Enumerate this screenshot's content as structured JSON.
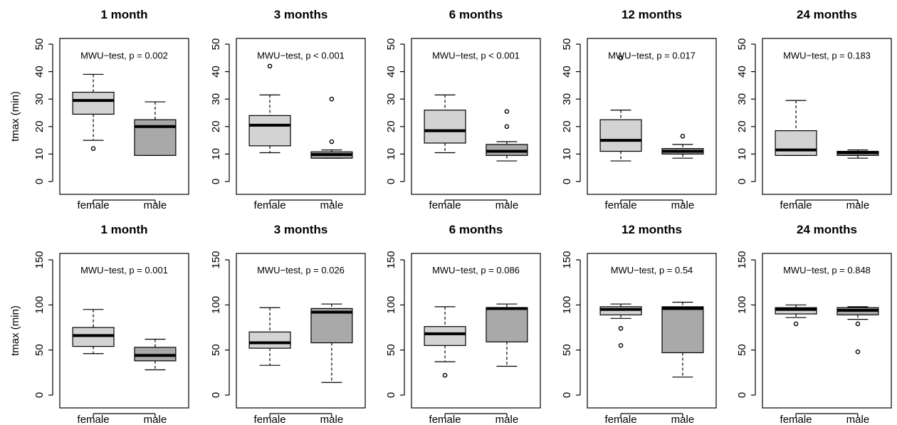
{
  "chart_data": [
    {
      "type": "boxplot",
      "title": "1 month",
      "ylabel": "tmax (min)",
      "annotation": "MWU−test, p = 0.002",
      "ylim": [
        0,
        50
      ],
      "yticks": [
        "0",
        "10",
        "20",
        "30",
        "40",
        "50"
      ],
      "categories": [
        "female",
        "male"
      ],
      "boxes": [
        {
          "name": "female",
          "color": "#d3d3d3",
          "whisker_low": 15,
          "q1": 24.5,
          "median": 29.5,
          "q3": 32.5,
          "whisker_high": 39,
          "outliers": [
            12
          ]
        },
        {
          "name": "male",
          "color": "#a9a9a9",
          "whisker_low": 9.5,
          "q1": 9.5,
          "median": 20,
          "q3": 22.5,
          "whisker_high": 29,
          "outliers": []
        }
      ]
    },
    {
      "type": "boxplot",
      "title": "3 months",
      "ylabel": "",
      "annotation": "MWU−test, p < 0.001",
      "ylim": [
        0,
        50
      ],
      "yticks": [
        "0",
        "10",
        "20",
        "30",
        "40",
        "50"
      ],
      "categories": [
        "female",
        "male"
      ],
      "boxes": [
        {
          "name": "female",
          "color": "#d3d3d3",
          "whisker_low": 10.5,
          "q1": 13,
          "median": 20.5,
          "q3": 24,
          "whisker_high": 31.5,
          "outliers": [
            42
          ]
        },
        {
          "name": "male",
          "color": "#a9a9a9",
          "whisker_low": 8.5,
          "q1": 8.5,
          "median": 9.8,
          "q3": 10.8,
          "whisker_high": 11.5,
          "outliers": [
            14.5,
            30
          ]
        }
      ]
    },
    {
      "type": "boxplot",
      "title": "6 months",
      "ylabel": "",
      "annotation": "MWU−test, p < 0.001",
      "ylim": [
        0,
        50
      ],
      "yticks": [
        "0",
        "10",
        "20",
        "30",
        "40",
        "50"
      ],
      "categories": [
        "female",
        "male"
      ],
      "boxes": [
        {
          "name": "female",
          "color": "#d3d3d3",
          "whisker_low": 10.5,
          "q1": 14,
          "median": 18.5,
          "q3": 26,
          "whisker_high": 31.5,
          "outliers": []
        },
        {
          "name": "male",
          "color": "#a9a9a9",
          "whisker_low": 7.5,
          "q1": 9.5,
          "median": 11,
          "q3": 13.5,
          "whisker_high": 14.5,
          "outliers": [
            20,
            25.5
          ]
        }
      ]
    },
    {
      "type": "boxplot",
      "title": "12 months",
      "ylabel": "",
      "annotation": "MWU−test, p = 0.017",
      "ylim": [
        0,
        50
      ],
      "yticks": [
        "0",
        "10",
        "20",
        "30",
        "40",
        "50"
      ],
      "categories": [
        "female",
        "male"
      ],
      "boxes": [
        {
          "name": "female",
          "color": "#d3d3d3",
          "whisker_low": 7.5,
          "q1": 11,
          "median": 15,
          "q3": 22.5,
          "whisker_high": 26,
          "outliers": [
            45
          ]
        },
        {
          "name": "male",
          "color": "#a9a9a9",
          "whisker_low": 8.5,
          "q1": 10,
          "median": 11,
          "q3": 12,
          "whisker_high": 13.5,
          "outliers": [
            16.5
          ]
        }
      ]
    },
    {
      "type": "boxplot",
      "title": "24 months",
      "ylabel": "",
      "annotation": "MWU−test, p = 0.183",
      "ylim": [
        0,
        50
      ],
      "yticks": [
        "0",
        "10",
        "20",
        "30",
        "40",
        "50"
      ],
      "categories": [
        "female",
        "male"
      ],
      "boxes": [
        {
          "name": "female",
          "color": "#d3d3d3",
          "whisker_low": 9.5,
          "q1": 9.5,
          "median": 11.5,
          "q3": 18.5,
          "whisker_high": 29.5,
          "outliers": []
        },
        {
          "name": "male",
          "color": "#a9a9a9",
          "whisker_low": 8.5,
          "q1": 9.5,
          "median": 10.5,
          "q3": 11,
          "whisker_high": 11.5,
          "outliers": []
        }
      ]
    },
    {
      "type": "boxplot",
      "title": "1 month",
      "ylabel": "tmax (min)",
      "annotation": "MWU−test, p = 0.001",
      "ylim": [
        0,
        150
      ],
      "yticks": [
        "0",
        "50",
        "100",
        "150"
      ],
      "categories": [
        "female",
        "male"
      ],
      "boxes": [
        {
          "name": "female",
          "color": "#d3d3d3",
          "whisker_low": 46,
          "q1": 54,
          "median": 66,
          "q3": 75,
          "whisker_high": 95,
          "outliers": []
        },
        {
          "name": "male",
          "color": "#a9a9a9",
          "whisker_low": 28,
          "q1": 38,
          "median": 44,
          "q3": 53,
          "whisker_high": 62,
          "outliers": []
        }
      ]
    },
    {
      "type": "boxplot",
      "title": "3 months",
      "ylabel": "",
      "annotation": "MWU−test, p = 0.026",
      "ylim": [
        0,
        150
      ],
      "yticks": [
        "0",
        "50",
        "100",
        "150"
      ],
      "categories": [
        "female",
        "male"
      ],
      "boxes": [
        {
          "name": "female",
          "color": "#d3d3d3",
          "whisker_low": 33,
          "q1": 52,
          "median": 58,
          "q3": 70,
          "whisker_high": 97,
          "outliers": []
        },
        {
          "name": "male",
          "color": "#a9a9a9",
          "whisker_low": 14,
          "q1": 58,
          "median": 92,
          "q3": 96,
          "whisker_high": 101,
          "outliers": []
        }
      ]
    },
    {
      "type": "boxplot",
      "title": "6 months",
      "ylabel": "",
      "annotation": "MWU−test, p = 0.086",
      "ylim": [
        0,
        150
      ],
      "yticks": [
        "0",
        "50",
        "100",
        "150"
      ],
      "categories": [
        "female",
        "male"
      ],
      "boxes": [
        {
          "name": "female",
          "color": "#d3d3d3",
          "whisker_low": 37,
          "q1": 55,
          "median": 68,
          "q3": 76,
          "whisker_high": 98,
          "outliers": [
            22
          ]
        },
        {
          "name": "male",
          "color": "#a9a9a9",
          "whisker_low": 32,
          "q1": 59,
          "median": 96,
          "q3": 97,
          "whisker_high": 101,
          "outliers": []
        }
      ]
    },
    {
      "type": "boxplot",
      "title": "12 months",
      "ylabel": "",
      "annotation": "MWU−test, p = 0.54",
      "ylim": [
        0,
        150
      ],
      "yticks": [
        "0",
        "50",
        "100",
        "150"
      ],
      "categories": [
        "female",
        "male"
      ],
      "boxes": [
        {
          "name": "female",
          "color": "#d3d3d3",
          "whisker_low": 85,
          "q1": 89,
          "median": 95,
          "q3": 98,
          "whisker_high": 101,
          "outliers": [
            55,
            74
          ]
        },
        {
          "name": "male",
          "color": "#a9a9a9",
          "whisker_low": 20,
          "q1": 47,
          "median": 96,
          "q3": 98,
          "whisker_high": 103,
          "outliers": []
        }
      ]
    },
    {
      "type": "boxplot",
      "title": "24 months",
      "ylabel": "",
      "annotation": "MWU−test, p = 0.848",
      "ylim": [
        0,
        150
      ],
      "yticks": [
        "0",
        "50",
        "100",
        "150"
      ],
      "categories": [
        "female",
        "male"
      ],
      "boxes": [
        {
          "name": "female",
          "color": "#d3d3d3",
          "whisker_low": 86,
          "q1": 90,
          "median": 95,
          "q3": 97,
          "whisker_high": 100,
          "outliers": [
            79
          ]
        },
        {
          "name": "male",
          "color": "#a9a9a9",
          "whisker_low": 84,
          "q1": 89,
          "median": 94,
          "q3": 97,
          "whisker_high": 98,
          "outliers": [
            48,
            79
          ]
        }
      ]
    }
  ]
}
